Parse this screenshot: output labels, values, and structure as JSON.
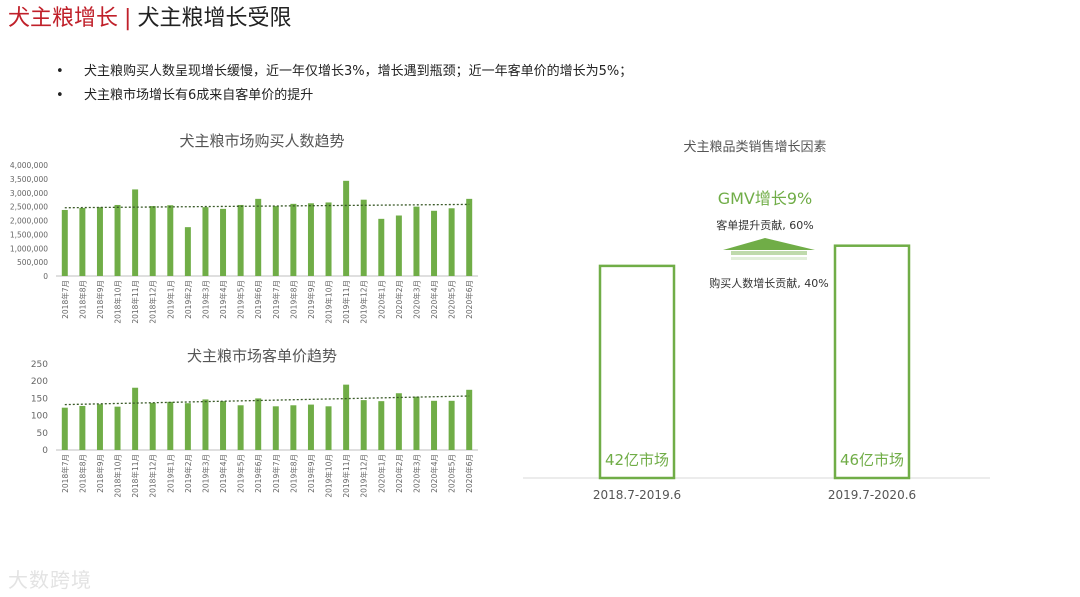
{
  "header": {
    "title_main": "犬主粮增长",
    "separator": "|",
    "title_sub": "犬主粮增长受限"
  },
  "bullets": [
    "犬主粮购买人数呈现增长缓慢，近一年仅增长3%，增长遇到瓶颈；近一年客单价的增长为5%；",
    "犬主粮市场增长有6成来自客单价的提升"
  ],
  "watermark": "大数跨境",
  "chart_data": [
    {
      "type": "bar",
      "title": "犬主粮市场购买人数趋势",
      "categories": [
        "2018年7月",
        "2018年8月",
        "2018年9月",
        "2018年10月",
        "2018年11月",
        "2018年12月",
        "2019年1月",
        "2019年2月",
        "2019年3月",
        "2019年4月",
        "2019年5月",
        "2019年6月",
        "2019年7月",
        "2019年8月",
        "2019年9月",
        "2019年10月",
        "2019年11月",
        "2019年12月",
        "2020年1月",
        "2020年2月",
        "2020年3月",
        "2020年4月",
        "2020年5月",
        "2020年6月"
      ],
      "values": [
        2380000,
        2450000,
        2480000,
        2560000,
        3120000,
        2520000,
        2550000,
        1760000,
        2480000,
        2420000,
        2560000,
        2780000,
        2520000,
        2600000,
        2620000,
        2650000,
        3430000,
        2750000,
        2060000,
        2180000,
        2500000,
        2350000,
        2440000,
        2780000
      ],
      "yticks": [
        "4,000,000",
        "3,500,000",
        "3,000,000",
        "2,500,000",
        "2,000,000",
        "1,500,000",
        "1,000,000",
        "500,000",
        "0"
      ],
      "ylim": [
        0,
        4000000
      ],
      "trendline": [
        2460000,
        2580000
      ],
      "colors": {
        "bar": "#70ad47",
        "trend": "#3a5a28"
      }
    },
    {
      "type": "bar",
      "title": "犬主粮市场客单价趋势",
      "categories": [
        "2018年7月",
        "2018年8月",
        "2018年9月",
        "2018年10月",
        "2018年11月",
        "2018年12月",
        "2019年1月",
        "2019年2月",
        "2019年3月",
        "2019年4月",
        "2019年5月",
        "2019年6月",
        "2019年7月",
        "2019年8月",
        "2019年9月",
        "2019年10月",
        "2019年11月",
        "2019年12月",
        "2020年1月",
        "2020年2月",
        "2020年3月",
        "2020年4月",
        "2020年5月",
        "2020年6月"
      ],
      "values": [
        123,
        128,
        133,
        126,
        181,
        137,
        140,
        136,
        147,
        142,
        130,
        150,
        127,
        130,
        132,
        127,
        190,
        145,
        142,
        165,
        155,
        143,
        143,
        175
      ],
      "yticks": [
        "250",
        "200",
        "150",
        "100",
        "50",
        "0"
      ],
      "ylim": [
        0,
        250
      ],
      "trendline": [
        132,
        157
      ],
      "colors": {
        "bar": "#70ad47",
        "trend": "#3a5a28"
      }
    },
    {
      "type": "bar",
      "title": "犬主粮品类销售增长因素",
      "categories": [
        "2018.7-2019.6",
        "2019.7-2020.6"
      ],
      "values": [
        42,
        46
      ],
      "bar_labels": [
        "42亿市场",
        "46亿市场"
      ],
      "gmv_label": "GMV增长9%",
      "factor_top": "客单提升贡献, 60%",
      "factor_bottom": "购买人数增长贡献, 40%",
      "colors": {
        "bar_outline": "#70ad47",
        "label": "#70ad47",
        "gmv": "#70ad47",
        "arrow": "#70ad47"
      }
    }
  ]
}
